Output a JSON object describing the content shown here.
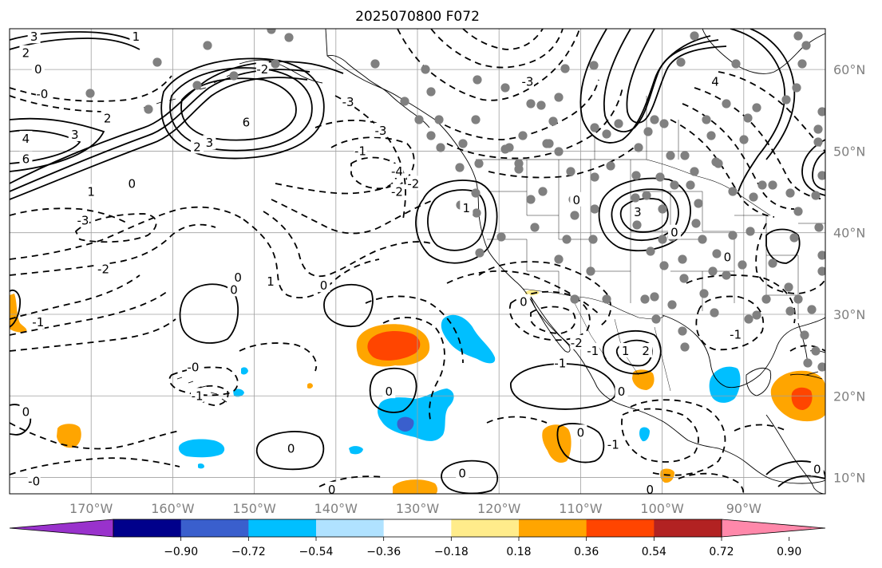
{
  "title": "2025070800 F072",
  "map": {
    "lat_labels": [
      "60°N",
      "50°N",
      "40°N",
      "30°N",
      "20°N",
      "10°N"
    ],
    "lat_values": [
      60,
      50,
      40,
      30,
      20,
      10
    ],
    "lon_labels": [
      "170°W",
      "160°W",
      "150°W",
      "140°W",
      "130°W",
      "120°W",
      "110°W",
      "100°W",
      "90°W"
    ],
    "lon_values": [
      -170,
      -160,
      -150,
      -140,
      -130,
      -120,
      -110,
      -100,
      -90
    ],
    "extent": {
      "lon_min": -180,
      "lon_max": -80,
      "lat_min": 8,
      "lat_max": 65
    },
    "contour_labels": [
      {
        "text": "3",
        "lon": -177,
        "lat": 64
      },
      {
        "text": "2",
        "lon": -178,
        "lat": 62
      },
      {
        "text": "0",
        "lon": -176.5,
        "lat": 60
      },
      {
        "text": "-0",
        "lon": -176,
        "lat": 57
      },
      {
        "text": "3",
        "lon": -172,
        "lat": 52
      },
      {
        "text": "4",
        "lon": -178,
        "lat": 51.5
      },
      {
        "text": "6",
        "lon": -178,
        "lat": 49
      },
      {
        "text": "1",
        "lon": -164.5,
        "lat": 64
      },
      {
        "text": "2",
        "lon": -168,
        "lat": 54
      },
      {
        "text": "6",
        "lon": -151,
        "lat": 53.5
      },
      {
        "text": "3",
        "lon": -155.5,
        "lat": 51
      },
      {
        "text": "2",
        "lon": -157,
        "lat": 50.5
      },
      {
        "text": "0",
        "lon": -165,
        "lat": 46
      },
      {
        "text": "1",
        "lon": -170,
        "lat": 45
      },
      {
        "text": "-3",
        "lon": -171,
        "lat": 41.5
      },
      {
        "text": "-2",
        "lon": -168.5,
        "lat": 35.5
      },
      {
        "text": "-2",
        "lon": -149,
        "lat": 60
      },
      {
        "text": "-3",
        "lon": -138.5,
        "lat": 56
      },
      {
        "text": "-4",
        "lon": -132.5,
        "lat": 47.5
      },
      {
        "text": "-3",
        "lon": -134.5,
        "lat": 52.5
      },
      {
        "text": "-2",
        "lon": -132.5,
        "lat": 45
      },
      {
        "text": "-2",
        "lon": -130.5,
        "lat": 46
      },
      {
        "text": "-1",
        "lon": -137,
        "lat": 50
      },
      {
        "text": "-3",
        "lon": -116.5,
        "lat": 58.5
      },
      {
        "text": "4",
        "lon": -93.5,
        "lat": 58.5
      },
      {
        "text": "1",
        "lon": -124,
        "lat": 43
      },
      {
        "text": "0",
        "lon": -110.5,
        "lat": 44
      },
      {
        "text": "3",
        "lon": -103,
        "lat": 42.5
      },
      {
        "text": "0",
        "lon": -98.5,
        "lat": 40
      },
      {
        "text": "0",
        "lon": -92,
        "lat": 37
      },
      {
        "text": "1",
        "lon": -148,
        "lat": 34
      },
      {
        "text": "0",
        "lon": -152,
        "lat": 34.5
      },
      {
        "text": "0",
        "lon": -152.5,
        "lat": 33
      },
      {
        "text": "-1",
        "lon": -176.5,
        "lat": 29
      },
      {
        "text": "0",
        "lon": -141.5,
        "lat": 33.5
      },
      {
        "text": "0",
        "lon": -133.5,
        "lat": 20.5
      },
      {
        "text": "-0",
        "lon": -157.5,
        "lat": 23.5
      },
      {
        "text": "-1",
        "lon": -157,
        "lat": 20
      },
      {
        "text": "0",
        "lon": -178,
        "lat": 18
      },
      {
        "text": "-0",
        "lon": -177,
        "lat": 9.5
      },
      {
        "text": "0",
        "lon": -145.5,
        "lat": 13.5
      },
      {
        "text": "0",
        "lon": -140.5,
        "lat": 8.5
      },
      {
        "text": "0",
        "lon": -124.5,
        "lat": 10.5
      },
      {
        "text": "0",
        "lon": -117,
        "lat": 31.5
      },
      {
        "text": "-2",
        "lon": -110.5,
        "lat": 26.5
      },
      {
        "text": "-1",
        "lon": -108.5,
        "lat": 25.5
      },
      {
        "text": "-1",
        "lon": -112.5,
        "lat": 24
      },
      {
        "text": "1",
        "lon": -104.5,
        "lat": 25.5
      },
      {
        "text": "2",
        "lon": -102,
        "lat": 25.5
      },
      {
        "text": "0",
        "lon": -105,
        "lat": 20.5
      },
      {
        "text": "0",
        "lon": -110,
        "lat": 15.5
      },
      {
        "text": "-1",
        "lon": -106,
        "lat": 14
      },
      {
        "text": "0",
        "lon": -101.5,
        "lat": 8.5
      },
      {
        "text": "-1",
        "lon": -91,
        "lat": 27.5
      },
      {
        "text": "0",
        "lon": -81,
        "lat": 11
      }
    ]
  },
  "colorbar": {
    "tick_labels": [
      "−0.90",
      "−0.72",
      "−0.54",
      "−0.36",
      "−0.18",
      "0.18",
      "0.36",
      "0.54",
      "0.72",
      "0.90"
    ],
    "colors": [
      "#9932cc",
      "#00008b",
      "#3a5fcd",
      "#00bfff",
      "#b0e2ff",
      "#ffffff",
      "#ffec8b",
      "#ffa500",
      "#ff4500",
      "#b22222",
      "#ff88aa"
    ]
  }
}
